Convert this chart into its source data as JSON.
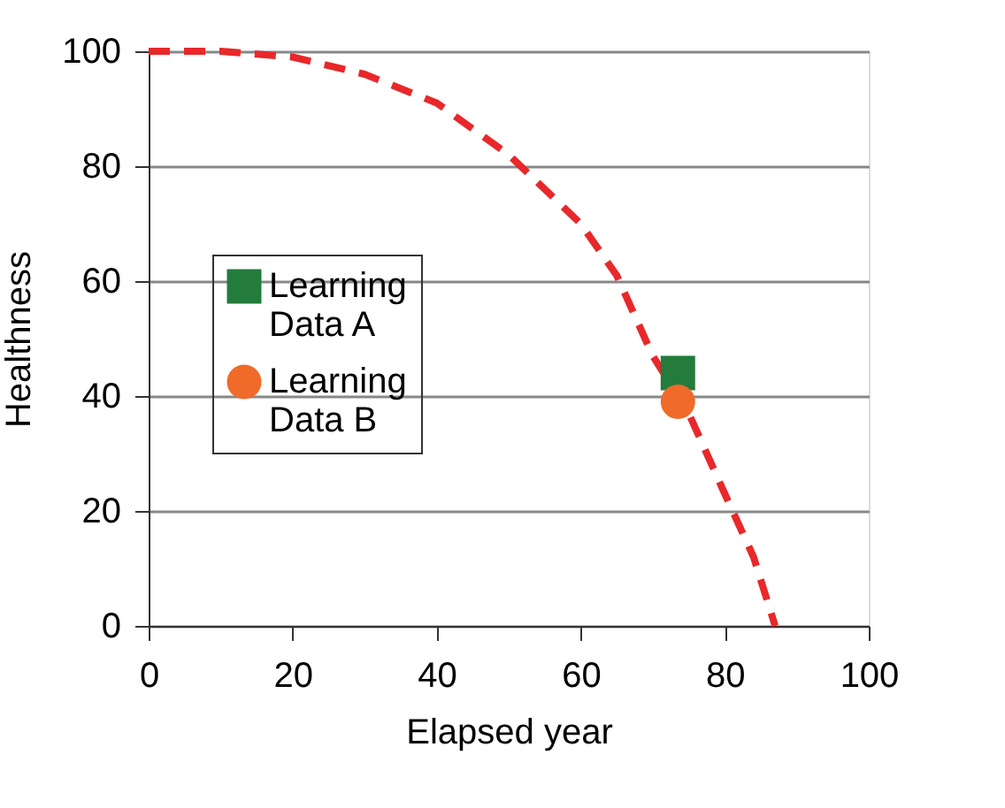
{
  "chart_data": {
    "type": "scatter",
    "xlabel": "Elapsed year",
    "ylabel": "Healthness",
    "xlim": [
      0,
      100
    ],
    "ylim": [
      0,
      100
    ],
    "xticks": [
      0,
      20,
      40,
      60,
      80,
      100
    ],
    "yticks": [
      0,
      20,
      40,
      60,
      80,
      100
    ],
    "grid": "y",
    "legend": "left",
    "series": [
      {
        "type": "line",
        "color": "#e8282a",
        "line_style": "dashed",
        "marker": "none",
        "x": [
          0,
          10,
          20,
          30,
          40,
          50,
          60,
          65,
          70,
          75,
          80,
          84,
          87
        ],
        "values": [
          100,
          100,
          99,
          96,
          91,
          82,
          70,
          61,
          47,
          37,
          23,
          12,
          0
        ]
      },
      {
        "name": "Learning Data A",
        "color": "#237b3c",
        "marker": "square",
        "x": [
          73.5
        ],
        "values": [
          44
        ]
      },
      {
        "name": "Learning Data B",
        "color": "#f06a2a",
        "marker": "circle",
        "x": [
          73.5
        ],
        "values": [
          39
        ]
      }
    ]
  }
}
